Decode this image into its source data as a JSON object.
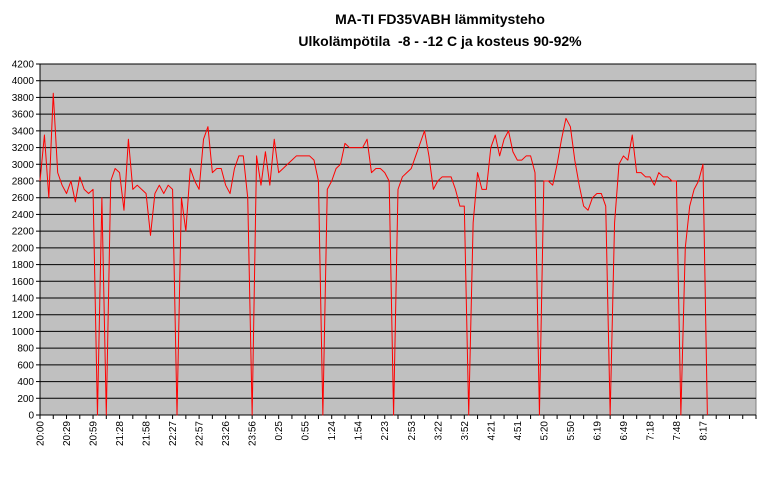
{
  "chart_data": {
    "type": "line",
    "title": "MA-TI FD35VABH lämmitysteho",
    "subtitle": "Ulkolämpötila  -8 - -12 C ja kosteus 90-92%",
    "categories": [
      "20:00",
      null,
      null,
      null,
      null,
      null,
      "20:29",
      null,
      null,
      null,
      null,
      null,
      "20:59",
      null,
      null,
      null,
      null,
      null,
      "21:28",
      null,
      null,
      null,
      null,
      null,
      "21:58",
      null,
      null,
      null,
      null,
      null,
      "22:27",
      null,
      null,
      null,
      null,
      null,
      "22:57",
      null,
      null,
      null,
      null,
      null,
      "23:26",
      null,
      null,
      null,
      null,
      null,
      "23:56",
      null,
      null,
      null,
      null,
      null,
      "0:25",
      null,
      null,
      null,
      null,
      null,
      "0:55",
      null,
      null,
      null,
      null,
      null,
      "1:24",
      null,
      null,
      null,
      null,
      null,
      "1:54",
      null,
      null,
      null,
      null,
      null,
      "2:23",
      null,
      null,
      null,
      null,
      null,
      "2:53",
      null,
      null,
      null,
      null,
      null,
      "3:22",
      null,
      null,
      null,
      null,
      null,
      "3:52",
      null,
      null,
      null,
      null,
      null,
      "4:21",
      null,
      null,
      null,
      null,
      null,
      "4:51",
      null,
      null,
      null,
      null,
      null,
      "5:20",
      null,
      null,
      null,
      null,
      null,
      "5:50",
      null,
      null,
      null,
      null,
      null,
      "6:19",
      null,
      null,
      null,
      null,
      null,
      "6:49",
      null,
      null,
      null,
      null,
      null,
      "7:18",
      null,
      null,
      null,
      null,
      null,
      "7:48",
      null,
      null,
      null,
      null,
      null,
      "8:17",
      null,
      null,
      null,
      null,
      null,
      null,
      null,
      null,
      null,
      null,
      null,
      null
    ],
    "values": [
      2800,
      3350,
      2600,
      3850,
      2900,
      2750,
      2650,
      2800,
      2550,
      2850,
      2700,
      2650,
      2700,
      0,
      2600,
      0,
      2800,
      2950,
      2900,
      2450,
      3300,
      2700,
      2750,
      2700,
      2650,
      2150,
      2650,
      2750,
      2650,
      2750,
      2700,
      0,
      2600,
      2200,
      2950,
      2800,
      2700,
      3300,
      3450,
      2900,
      2950,
      2950,
      2750,
      2650,
      2950,
      3100,
      3100,
      2600,
      0,
      3100,
      2750,
      3150,
      2750,
      3300,
      2900,
      2950,
      3000,
      3050,
      3100,
      3100,
      3100,
      3100,
      3050,
      2800,
      0,
      2700,
      2800,
      2950,
      3000,
      3250,
      3200,
      3200,
      3200,
      3200,
      3300,
      2900,
      2950,
      2950,
      2900,
      2800,
      0,
      2700,
      2850,
      2900,
      2950,
      3100,
      3250,
      3400,
      3100,
      2700,
      2800,
      2850,
      2850,
      2850,
      2700,
      2500,
      2500,
      0,
      2300,
      2900,
      2700,
      2700,
      3200,
      3350,
      3100,
      3300,
      3400,
      3150,
      3050,
      3050,
      3100,
      3100,
      2900,
      0,
      2800,
      2800,
      2750,
      3000,
      3300,
      3550,
      3450,
      3050,
      2750,
      2500,
      2450,
      2600,
      2650,
      2650,
      2500,
      0,
      2300,
      3000,
      3100,
      3050,
      3350,
      2900,
      2900,
      2850,
      2850,
      2750,
      2900,
      2850,
      2850,
      2800,
      2800,
      0,
      2000,
      2500,
      2700,
      2800,
      3000,
      0,
      null,
      null,
      null,
      null,
      null,
      null,
      null,
      null,
      null,
      null,
      null
    ],
    "color": "#ff0000",
    "ylim": [
      0,
      4200
    ],
    "yticks": [
      0,
      200,
      400,
      600,
      800,
      1000,
      1200,
      1400,
      1600,
      1800,
      2000,
      2200,
      2400,
      2600,
      2800,
      3000,
      3200,
      3400,
      3600,
      3800,
      4000,
      4200
    ],
    "grid": true
  }
}
